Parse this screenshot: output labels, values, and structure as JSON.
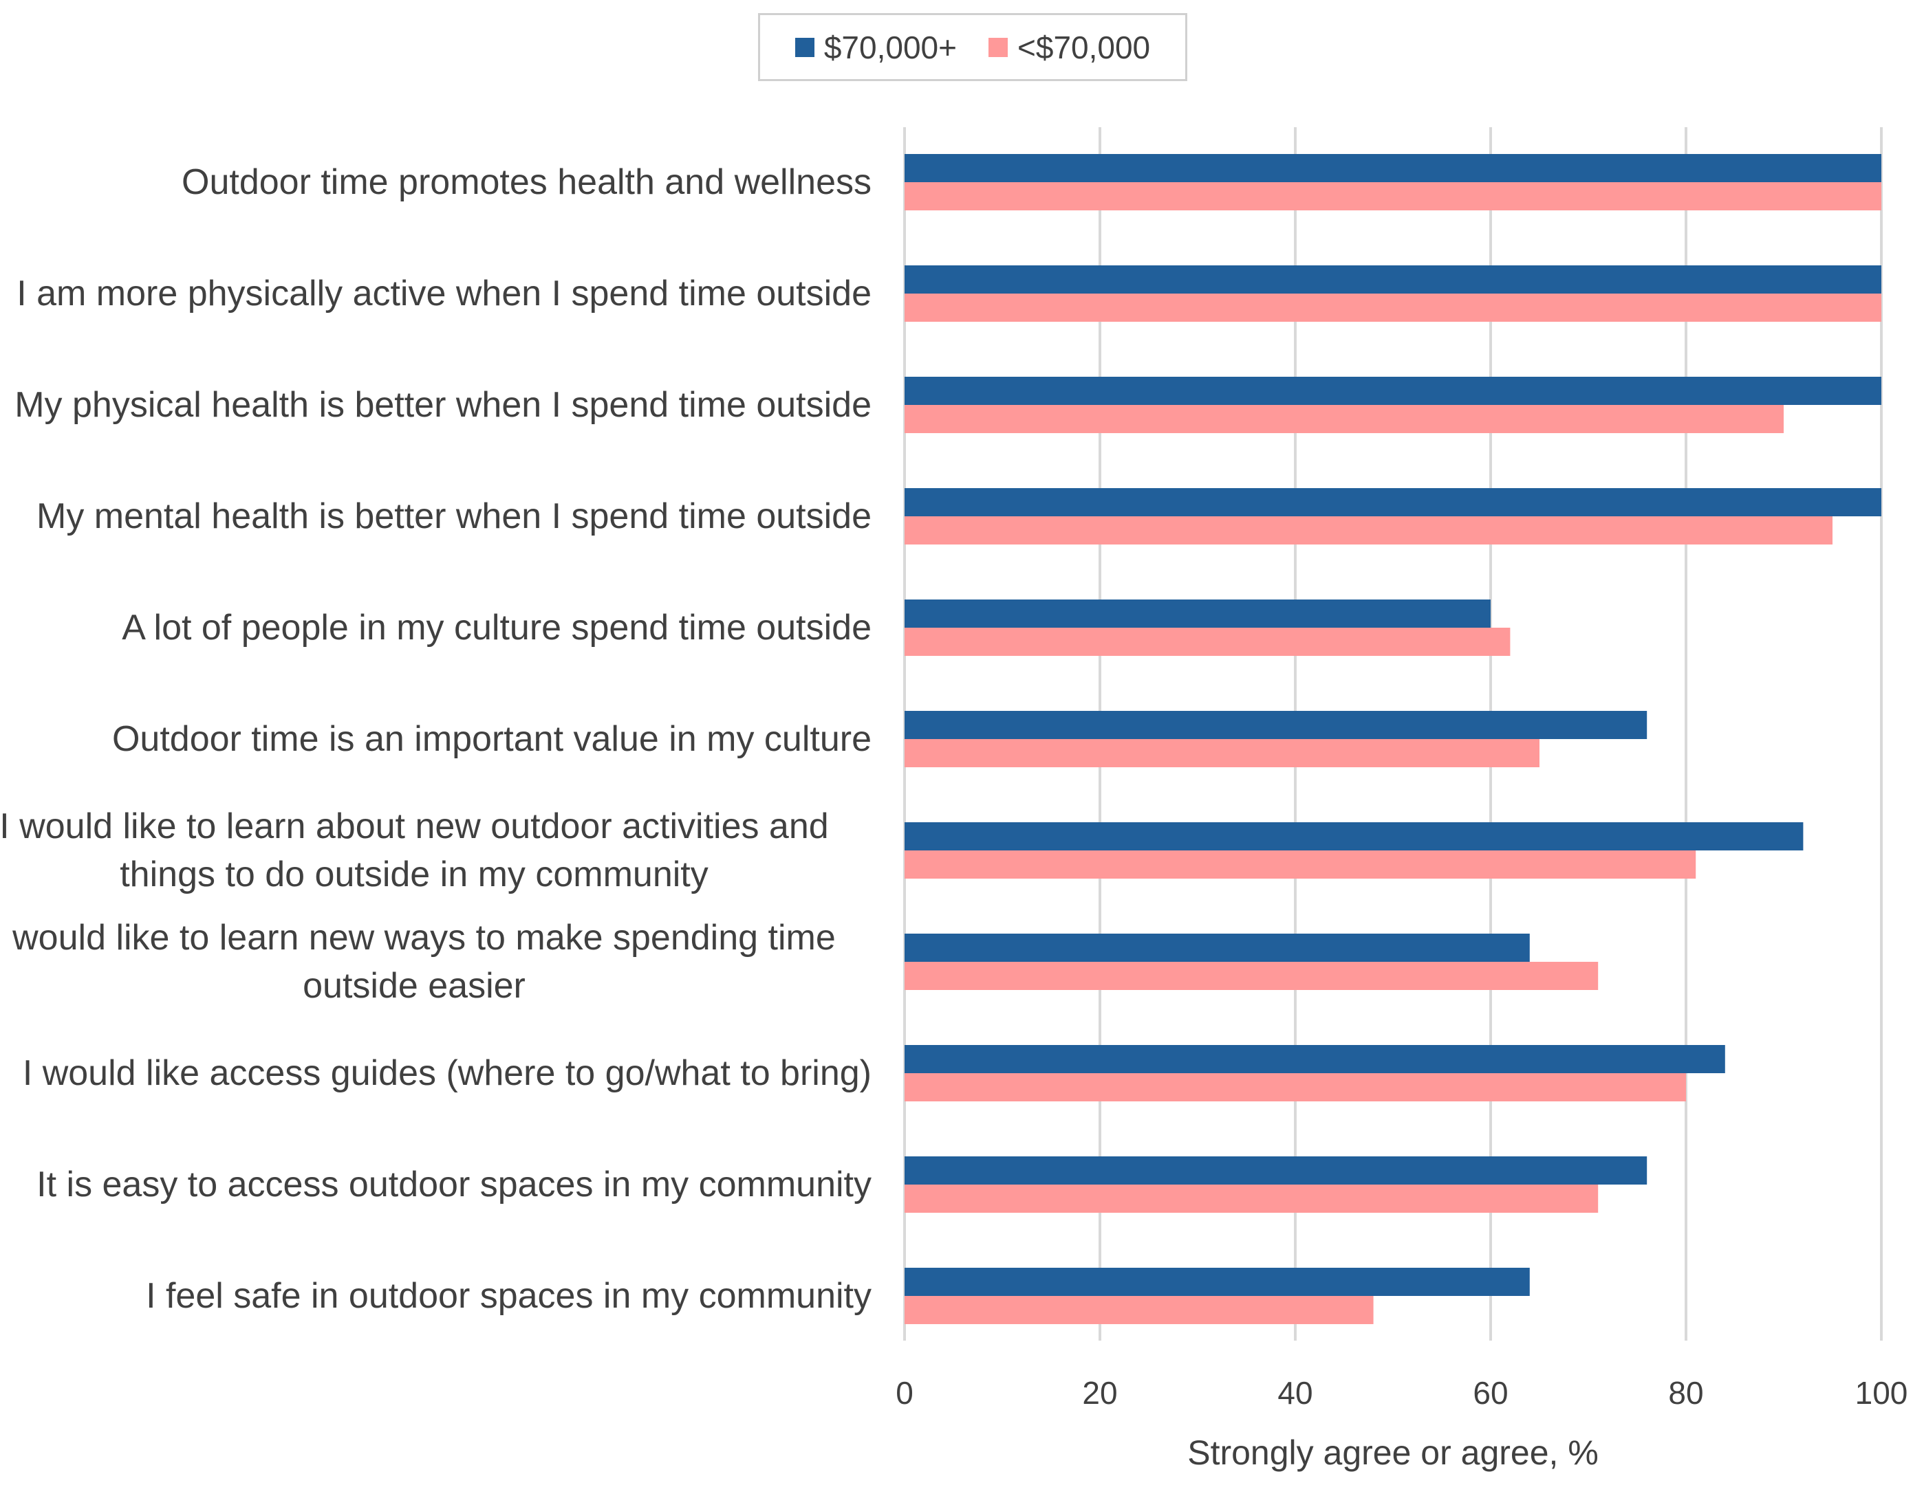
{
  "chart_data": {
    "type": "bar",
    "orientation": "horizontal",
    "categories": [
      "Outdoor time promotes health and wellness",
      "I am more physically active when I spend time outside",
      "My physical health is better when I spend time outside",
      "My mental health is better when I spend time outside",
      "A lot of people in my culture spend time outside",
      "Outdoor time is an important value in my culture",
      "I would like to learn about new outdoor activities and things to do outside in my community",
      "I would like to learn new ways to make spending time outside easier",
      "I would like access guides (where to go/what to bring)",
      "It is easy to access outdoor spaces in my community",
      "I feel safe in outdoor spaces in my community"
    ],
    "category_lines": [
      [
        "Outdoor time promotes health and wellness"
      ],
      [
        "I am more physically active when I spend time outside"
      ],
      [
        "My physical health is better when I spend time outside"
      ],
      [
        "My mental health is better when I spend time outside"
      ],
      [
        "A lot of people in my culture spend time outside"
      ],
      [
        "Outdoor time is an important value in my culture"
      ],
      [
        "I would like to learn about new outdoor activities and",
        "things to do outside in my community"
      ],
      [
        "I would like to learn new ways to make spending time",
        "outside easier"
      ],
      [
        "I would like access guides (where to go/what to bring)"
      ],
      [
        "It is easy to access outdoor spaces in my community"
      ],
      [
        "I feel safe in outdoor spaces in my community"
      ]
    ],
    "series": [
      {
        "name": "$70,000+",
        "color": "#215f9a",
        "values": [
          100,
          100,
          100,
          100,
          60,
          76,
          92,
          64,
          84,
          76,
          64
        ]
      },
      {
        "name": "<$70,000",
        "color": "#ff9999",
        "values": [
          100,
          100,
          90,
          95,
          62,
          65,
          81,
          71,
          80,
          71,
          48
        ]
      }
    ],
    "xlabel": "Strongly agree or agree, %",
    "ylabel": "",
    "xlim": [
      0,
      100
    ],
    "xticks": [
      0,
      20,
      40,
      60,
      80,
      100
    ],
    "grid": true,
    "legend": "top-center",
    "gridline_color": "#d9d9d9"
  }
}
